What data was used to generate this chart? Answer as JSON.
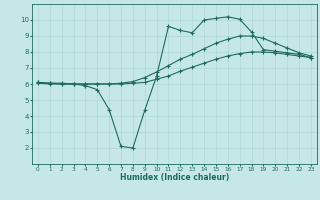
{
  "xlabel": "Humidex (Indice chaleur)",
  "xlim": [
    -0.5,
    23.5
  ],
  "ylim": [
    1,
    11
  ],
  "yticks": [
    2,
    3,
    4,
    5,
    6,
    7,
    8,
    9,
    10
  ],
  "xticks": [
    0,
    1,
    2,
    3,
    4,
    5,
    6,
    7,
    8,
    9,
    10,
    11,
    12,
    13,
    14,
    15,
    16,
    17,
    18,
    19,
    20,
    21,
    22,
    23
  ],
  "bg_color": "#c5e8e4",
  "grid_color": "#b0d8d4",
  "line_color": "#1e6b5e",
  "curve1_x": [
    0,
    1,
    2,
    3,
    4,
    5,
    6,
    7,
    8,
    9,
    10,
    11,
    12,
    13,
    14,
    15,
    16,
    17,
    18,
    19,
    20,
    21,
    22,
    23
  ],
  "curve1_y": [
    6.05,
    6.0,
    6.0,
    6.0,
    6.0,
    6.0,
    6.0,
    6.0,
    6.05,
    6.1,
    6.3,
    6.5,
    6.8,
    7.05,
    7.3,
    7.55,
    7.75,
    7.9,
    8.0,
    8.0,
    7.95,
    7.85,
    7.75,
    7.65
  ],
  "curve2_x": [
    0,
    1,
    2,
    3,
    4,
    5,
    6,
    7,
    8,
    9,
    10,
    11,
    12,
    13,
    14,
    15,
    16,
    17,
    18,
    19,
    20,
    21,
    22,
    23
  ],
  "curve2_y": [
    6.1,
    6.05,
    6.0,
    6.0,
    6.0,
    6.0,
    6.0,
    6.05,
    6.15,
    6.4,
    6.75,
    7.15,
    7.55,
    7.85,
    8.2,
    8.55,
    8.8,
    9.0,
    9.0,
    8.85,
    8.55,
    8.25,
    7.95,
    7.75
  ],
  "curve3_x": [
    0,
    1,
    2,
    3,
    4,
    5,
    6,
    7,
    8,
    9,
    10,
    11,
    12,
    13,
    14,
    15,
    16,
    17,
    18,
    19,
    20,
    21,
    22,
    23
  ],
  "curve3_y": [
    6.1,
    6.05,
    6.05,
    6.0,
    5.9,
    5.65,
    4.4,
    2.1,
    2.0,
    4.35,
    6.5,
    9.6,
    9.35,
    9.2,
    10.0,
    10.1,
    10.2,
    10.05,
    9.25,
    8.15,
    8.05,
    7.95,
    7.85,
    7.65
  ]
}
